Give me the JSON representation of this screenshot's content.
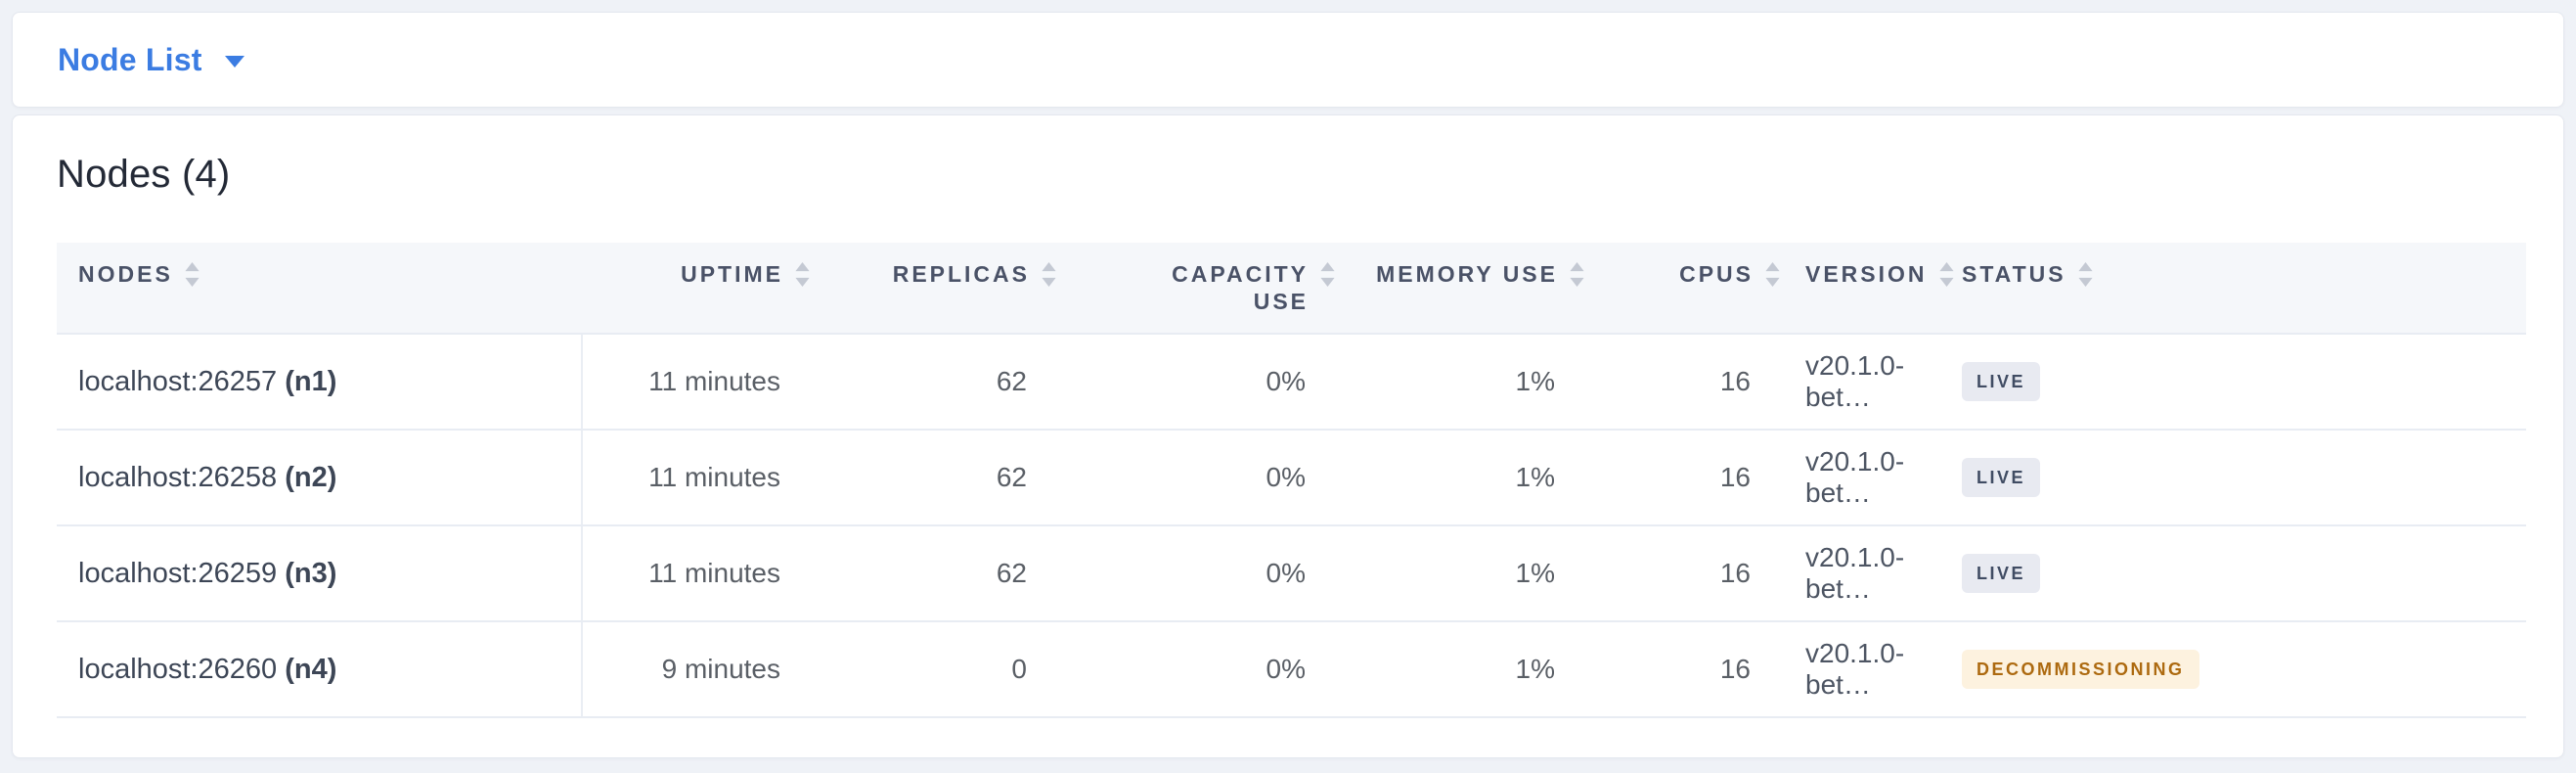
{
  "topbar": {
    "dropdown_label": "Node List",
    "dropdown_icon": "caret-down-icon"
  },
  "main": {
    "title": "Nodes (4)",
    "table": {
      "columns": [
        {
          "id": "nodes",
          "label": "NODES",
          "sort_icon": "sort-icon"
        },
        {
          "id": "uptime",
          "label": "UPTIME",
          "sort_icon": "sort-icon"
        },
        {
          "id": "replicas",
          "label": "REPLICAS",
          "sort_icon": "sort-icon"
        },
        {
          "id": "capacity-use",
          "label": "CAPACITY USE",
          "sort_icon": "sort-icon"
        },
        {
          "id": "memory-use",
          "label": "MEMORY USE",
          "sort_icon": "sort-icon"
        },
        {
          "id": "cpus",
          "label": "CPUS",
          "sort_icon": "sort-icon"
        },
        {
          "id": "version",
          "label": "VERSION",
          "sort_icon": "sort-icon"
        },
        {
          "id": "status",
          "label": "STATUS",
          "sort_icon": "sort-icon"
        }
      ],
      "rows": [
        {
          "node": "localhost:26257",
          "node_id": "(n1)",
          "uptime": "11 minutes",
          "replicas": "62",
          "capacity_use": "0%",
          "memory_use": "1%",
          "cpus": "16",
          "version": "v20.1.0-bet…",
          "status": {
            "label": "LIVE",
            "type": "live"
          }
        },
        {
          "node": "localhost:26258",
          "node_id": "(n2)",
          "uptime": "11 minutes",
          "replicas": "62",
          "capacity_use": "0%",
          "memory_use": "1%",
          "cpus": "16",
          "version": "v20.1.0-bet…",
          "status": {
            "label": "LIVE",
            "type": "live"
          }
        },
        {
          "node": "localhost:26259",
          "node_id": "(n3)",
          "uptime": "11 minutes",
          "replicas": "62",
          "capacity_use": "0%",
          "memory_use": "1%",
          "cpus": "16",
          "version": "v20.1.0-bet…",
          "status": {
            "label": "LIVE",
            "type": "live"
          }
        },
        {
          "node": "localhost:26260",
          "node_id": "(n4)",
          "uptime": "9 minutes",
          "replicas": "0",
          "capacity_use": "0%",
          "memory_use": "1%",
          "cpus": "16",
          "version": "v20.1.0-bet…",
          "status": {
            "label": "DECOMMISSIONING",
            "type": "decommissioning"
          }
        }
      ]
    }
  },
  "colors": {
    "accent_blue": "#3b7ce2",
    "live_bg": "#e8eaf1",
    "live_text": "#404c63",
    "decommissioning_bg": "#fdf2df",
    "decommissioning_text": "#ad6a10"
  }
}
